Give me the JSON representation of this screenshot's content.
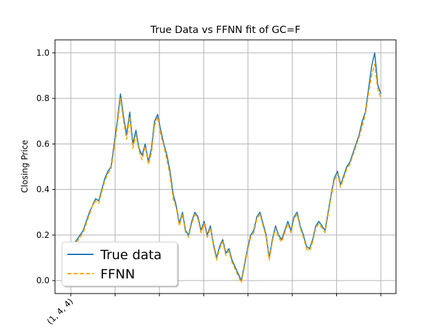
{
  "chart_data": {
    "type": "line",
    "title": "True Data vs FFNN fit of GC=F",
    "xlabel": "",
    "ylabel": "Closing Price",
    "ylim": [
      -0.057,
      1.057
    ],
    "y_ticks": [
      "0.0",
      "0.2",
      "0.4",
      "0.6",
      "0.8",
      "1.0"
    ],
    "x_tick_labels": [
      "(1, 4, 4)"
    ],
    "x_tick_count": 8,
    "grid": true,
    "legend_position": "lower-left",
    "series": [
      {
        "name": "True data",
        "color": "#1f77b4",
        "style": "solid",
        "points": [
          [
            0,
            0.14
          ],
          [
            1,
            0.16
          ],
          [
            2,
            0.18
          ],
          [
            3,
            0.2
          ],
          [
            4,
            0.22
          ],
          [
            5,
            0.26
          ],
          [
            6,
            0.3
          ],
          [
            7,
            0.33
          ],
          [
            8,
            0.36
          ],
          [
            9,
            0.35
          ],
          [
            10,
            0.4
          ],
          [
            11,
            0.45
          ],
          [
            12,
            0.48
          ],
          [
            13,
            0.5
          ],
          [
            14,
            0.6
          ],
          [
            15,
            0.7
          ],
          [
            16,
            0.82
          ],
          [
            17,
            0.72
          ],
          [
            18,
            0.64
          ],
          [
            19,
            0.74
          ],
          [
            20,
            0.6
          ],
          [
            21,
            0.66
          ],
          [
            22,
            0.58
          ],
          [
            23,
            0.55
          ],
          [
            24,
            0.6
          ],
          [
            25,
            0.52
          ],
          [
            26,
            0.58
          ],
          [
            27,
            0.7
          ],
          [
            28,
            0.73
          ],
          [
            29,
            0.66
          ],
          [
            30,
            0.6
          ],
          [
            31,
            0.55
          ],
          [
            32,
            0.48
          ],
          [
            33,
            0.38
          ],
          [
            34,
            0.33
          ],
          [
            35,
            0.25
          ],
          [
            36,
            0.3
          ],
          [
            37,
            0.22
          ],
          [
            38,
            0.2
          ],
          [
            39,
            0.26
          ],
          [
            40,
            0.3
          ],
          [
            41,
            0.28
          ],
          [
            42,
            0.22
          ],
          [
            43,
            0.26
          ],
          [
            44,
            0.2
          ],
          [
            45,
            0.24
          ],
          [
            46,
            0.16
          ],
          [
            47,
            0.1
          ],
          [
            48,
            0.15
          ],
          [
            49,
            0.18
          ],
          [
            50,
            0.12
          ],
          [
            51,
            0.14
          ],
          [
            52,
            0.09
          ],
          [
            53,
            0.06
          ],
          [
            54,
            0.03
          ],
          [
            55,
            0.0
          ],
          [
            56,
            0.07
          ],
          [
            57,
            0.14
          ],
          [
            58,
            0.2
          ],
          [
            59,
            0.22
          ],
          [
            60,
            0.28
          ],
          [
            61,
            0.3
          ],
          [
            62,
            0.25
          ],
          [
            63,
            0.2
          ],
          [
            64,
            0.1
          ],
          [
            65,
            0.18
          ],
          [
            66,
            0.24
          ],
          [
            67,
            0.2
          ],
          [
            68,
            0.18
          ],
          [
            69,
            0.22
          ],
          [
            70,
            0.26
          ],
          [
            71,
            0.22
          ],
          [
            72,
            0.28
          ],
          [
            73,
            0.3
          ],
          [
            74,
            0.24
          ],
          [
            75,
            0.2
          ],
          [
            76,
            0.15
          ],
          [
            77,
            0.14
          ],
          [
            78,
            0.18
          ],
          [
            79,
            0.24
          ],
          [
            80,
            0.26
          ],
          [
            81,
            0.24
          ],
          [
            82,
            0.22
          ],
          [
            83,
            0.3
          ],
          [
            84,
            0.38
          ],
          [
            85,
            0.45
          ],
          [
            86,
            0.48
          ],
          [
            87,
            0.42
          ],
          [
            88,
            0.46
          ],
          [
            89,
            0.5
          ],
          [
            90,
            0.52
          ],
          [
            91,
            0.56
          ],
          [
            92,
            0.6
          ],
          [
            93,
            0.64
          ],
          [
            94,
            0.7
          ],
          [
            95,
            0.74
          ],
          [
            96,
            0.84
          ],
          [
            97,
            0.94
          ],
          [
            98,
            1.0
          ],
          [
            99,
            0.86
          ],
          [
            100,
            0.82
          ]
        ]
      },
      {
        "name": "FFNN",
        "color": "#ffa500",
        "style": "dashed",
        "points": [
          [
            0,
            0.12
          ],
          [
            1,
            0.15
          ],
          [
            2,
            0.17
          ],
          [
            3,
            0.19
          ],
          [
            4,
            0.21
          ],
          [
            5,
            0.25
          ],
          [
            6,
            0.29
          ],
          [
            7,
            0.33
          ],
          [
            8,
            0.35
          ],
          [
            9,
            0.34
          ],
          [
            10,
            0.39
          ],
          [
            11,
            0.44
          ],
          [
            12,
            0.47
          ],
          [
            13,
            0.49
          ],
          [
            14,
            0.58
          ],
          [
            15,
            0.68
          ],
          [
            16,
            0.8
          ],
          [
            17,
            0.7
          ],
          [
            18,
            0.62
          ],
          [
            19,
            0.72
          ],
          [
            20,
            0.58
          ],
          [
            21,
            0.64
          ],
          [
            22,
            0.57
          ],
          [
            23,
            0.53
          ],
          [
            24,
            0.59
          ],
          [
            25,
            0.51
          ],
          [
            26,
            0.56
          ],
          [
            27,
            0.68
          ],
          [
            28,
            0.72
          ],
          [
            29,
            0.64
          ],
          [
            30,
            0.59
          ],
          [
            31,
            0.53
          ],
          [
            32,
            0.46
          ],
          [
            33,
            0.36
          ],
          [
            34,
            0.32
          ],
          [
            35,
            0.24
          ],
          [
            36,
            0.29
          ],
          [
            37,
            0.21
          ],
          [
            38,
            0.19
          ],
          [
            39,
            0.25
          ],
          [
            40,
            0.29
          ],
          [
            41,
            0.27
          ],
          [
            42,
            0.21
          ],
          [
            43,
            0.25
          ],
          [
            44,
            0.19
          ],
          [
            45,
            0.23
          ],
          [
            46,
            0.15
          ],
          [
            47,
            0.09
          ],
          [
            48,
            0.14
          ],
          [
            49,
            0.17
          ],
          [
            50,
            0.11
          ],
          [
            51,
            0.13
          ],
          [
            52,
            0.08
          ],
          [
            53,
            0.05
          ],
          [
            54,
            0.02
          ],
          [
            55,
            -0.01
          ],
          [
            56,
            0.06
          ],
          [
            57,
            0.13
          ],
          [
            58,
            0.19
          ],
          [
            59,
            0.21
          ],
          [
            60,
            0.27
          ],
          [
            61,
            0.29
          ],
          [
            62,
            0.24
          ],
          [
            63,
            0.19
          ],
          [
            64,
            0.09
          ],
          [
            65,
            0.17
          ],
          [
            66,
            0.23
          ],
          [
            67,
            0.19
          ],
          [
            68,
            0.17
          ],
          [
            69,
            0.21
          ],
          [
            70,
            0.25
          ],
          [
            71,
            0.21
          ],
          [
            72,
            0.27
          ],
          [
            73,
            0.29
          ],
          [
            74,
            0.23
          ],
          [
            75,
            0.19
          ],
          [
            76,
            0.14
          ],
          [
            77,
            0.13
          ],
          [
            78,
            0.17
          ],
          [
            79,
            0.23
          ],
          [
            80,
            0.25
          ],
          [
            81,
            0.23
          ],
          [
            82,
            0.21
          ],
          [
            83,
            0.29
          ],
          [
            84,
            0.37
          ],
          [
            85,
            0.44
          ],
          [
            86,
            0.47
          ],
          [
            87,
            0.41
          ],
          [
            88,
            0.45
          ],
          [
            89,
            0.49
          ],
          [
            90,
            0.51
          ],
          [
            91,
            0.55
          ],
          [
            92,
            0.59
          ],
          [
            93,
            0.63
          ],
          [
            94,
            0.68
          ],
          [
            95,
            0.73
          ],
          [
            96,
            0.82
          ],
          [
            97,
            0.9
          ],
          [
            98,
            0.95
          ],
          [
            99,
            0.84
          ],
          [
            100,
            0.8
          ]
        ]
      }
    ]
  }
}
